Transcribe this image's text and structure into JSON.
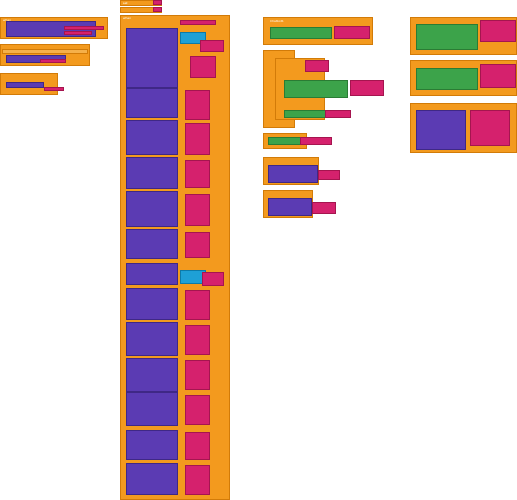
{
  "small_text": "Chatbot1",
  "labels": {
    "when": "when",
    "do": "do",
    "call": "call",
    "set": "set",
    "to": "to",
    "text": "text",
    "firebase_db": "FirebaseDB1",
    "store_value": "StoreValue",
    "get_value": "GetValue",
    "tag": "tag",
    "value": "value",
    "got_value": "GotValue"
  },
  "colors": {
    "event": "#f39a1e",
    "component": "#5b3bb3",
    "text": "#d5216d",
    "logic": "#3ca34a",
    "math": "#1ea0d6"
  }
}
